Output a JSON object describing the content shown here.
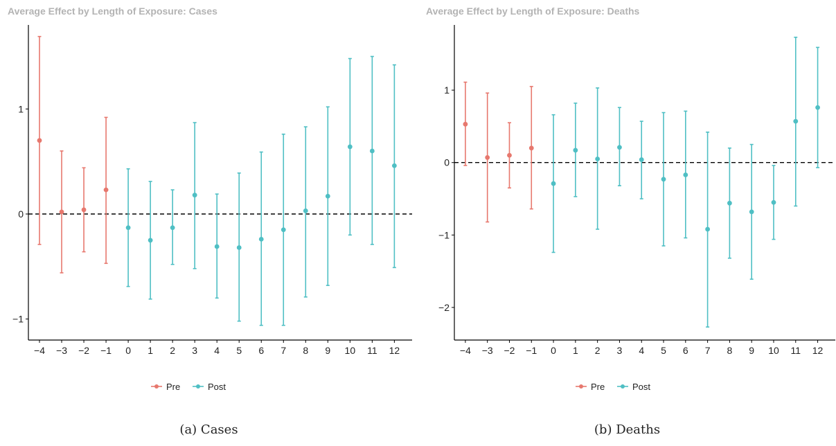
{
  "chart_data": [
    {
      "type": "errorbar",
      "title": "Average Effect by Length of Exposure: Cases",
      "caption": "(a)  Cases",
      "x": [
        -4,
        -3,
        -2,
        -1,
        0,
        1,
        2,
        3,
        4,
        5,
        6,
        7,
        8,
        9,
        10,
        11,
        12
      ],
      "x_tick_labels": [
        "−4",
        "−3",
        "−2",
        "−1",
        "0",
        "1",
        "2",
        "3",
        "4",
        "5",
        "6",
        "7",
        "8",
        "9",
        "10",
        "11",
        "12"
      ],
      "group": [
        "Pre",
        "Pre",
        "Pre",
        "Pre",
        "Post",
        "Post",
        "Post",
        "Post",
        "Post",
        "Post",
        "Post",
        "Post",
        "Post",
        "Post",
        "Post",
        "Post",
        "Post"
      ],
      "estimate": [
        0.7,
        0.02,
        0.04,
        0.23,
        -0.13,
        -0.25,
        -0.13,
        0.18,
        -0.31,
        -0.32,
        -0.24,
        -0.15,
        0.03,
        0.17,
        0.64,
        0.6,
        0.46
      ],
      "ci_lower": [
        -0.29,
        -0.56,
        -0.36,
        -0.47,
        -0.69,
        -0.81,
        -0.48,
        -0.52,
        -0.8,
        -1.02,
        -1.06,
        -1.06,
        -0.79,
        -0.68,
        -0.2,
        -0.29,
        -0.51
      ],
      "ci_upper": [
        1.69,
        0.6,
        0.44,
        0.92,
        0.43,
        0.31,
        0.23,
        0.87,
        0.19,
        0.39,
        0.59,
        0.76,
        0.83,
        1.02,
        1.48,
        1.5,
        1.42
      ],
      "ylim": [
        -1.2,
        1.8
      ],
      "x_range": [
        -4.5,
        12.8
      ],
      "y_ticks": [
        -1,
        0,
        1
      ],
      "y_tick_labels": [
        "−1",
        "0",
        "1"
      ],
      "reference_line": 0,
      "legend": {
        "placement": "bottom",
        "entries": [
          "Pre",
          "Post"
        ]
      }
    },
    {
      "type": "errorbar",
      "title": "Average Effect by Length of Exposure: Deaths",
      "caption": "(b)  Deaths",
      "x": [
        -4,
        -3,
        -2,
        -1,
        0,
        1,
        2,
        3,
        4,
        5,
        6,
        7,
        8,
        9,
        10,
        11,
        12
      ],
      "x_tick_labels": [
        "−4",
        "−3",
        "−2",
        "−1",
        "0",
        "1",
        "2",
        "3",
        "4",
        "5",
        "6",
        "7",
        "8",
        "9",
        "10",
        "11",
        "12"
      ],
      "group": [
        "Pre",
        "Pre",
        "Pre",
        "Pre",
        "Post",
        "Post",
        "Post",
        "Post",
        "Post",
        "Post",
        "Post",
        "Post",
        "Post",
        "Post",
        "Post",
        "Post",
        "Post"
      ],
      "estimate": [
        0.53,
        0.07,
        0.1,
        0.2,
        -0.29,
        0.17,
        0.05,
        0.21,
        0.04,
        -0.23,
        -0.17,
        -0.92,
        -0.56,
        -0.68,
        -0.55,
        0.57,
        0.76
      ],
      "ci_lower": [
        -0.04,
        -0.82,
        -0.35,
        -0.64,
        -1.24,
        -0.47,
        -0.92,
        -0.32,
        -0.5,
        -1.15,
        -1.04,
        -2.27,
        -1.32,
        -1.61,
        -1.06,
        -0.6,
        -0.07
      ],
      "ci_upper": [
        1.11,
        0.96,
        0.55,
        1.05,
        0.66,
        0.82,
        1.03,
        0.76,
        0.57,
        0.69,
        0.71,
        0.42,
        0.2,
        0.25,
        -0.04,
        1.73,
        1.59
      ],
      "ylim": [
        -2.45,
        1.9
      ],
      "x_range": [
        -4.5,
        12.8
      ],
      "y_ticks": [
        -2,
        -1,
        0,
        1
      ],
      "y_tick_labels": [
        "−2",
        "−1",
        "0",
        "1"
      ],
      "reference_line": 0,
      "legend": {
        "placement": "bottom",
        "entries": [
          "Pre",
          "Post"
        ]
      }
    }
  ],
  "colors": {
    "Pre": "#e7786e",
    "Post": "#4fbfc4",
    "axis": "#000000",
    "title": "#b3b3b3",
    "reference": "#000000"
  }
}
